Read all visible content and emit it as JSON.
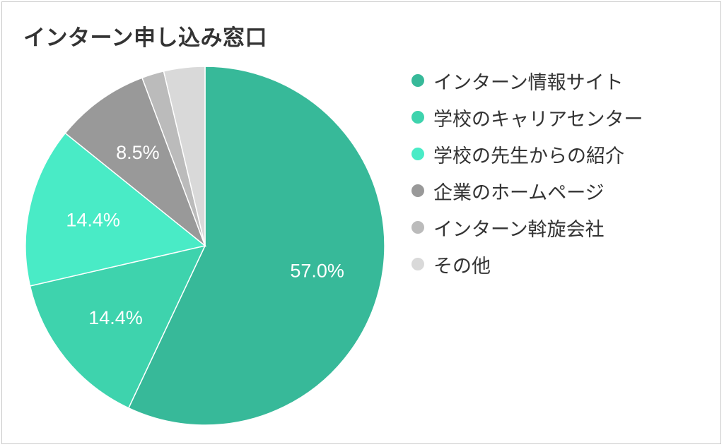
{
  "colors": {
    "background": "#ffffff",
    "title_text": "#333333",
    "label_text": "#ffffff"
  },
  "chart_data": {
    "type": "pie",
    "title": "インターン申し込み窓口",
    "slices": [
      {
        "label": "インターン情報サイト",
        "value": 57.0,
        "value_label": "57.0%",
        "color": "#37b999"
      },
      {
        "label": "学校のキャリアセンター",
        "value": 14.4,
        "value_label": "14.4%",
        "color": "#3ed3ad"
      },
      {
        "label": "学校の先生からの紹介",
        "value": 14.4,
        "value_label": "14.4%",
        "color": "#49ebc6"
      },
      {
        "label": "企業のホームページ",
        "value": 8.5,
        "value_label": "8.5%",
        "color": "#999999"
      },
      {
        "label": "インターン斡旋会社",
        "value": 2.0,
        "value_label": "",
        "color": "#bbbbbb"
      },
      {
        "label": "その他",
        "value": 3.7,
        "value_label": "",
        "color": "#d9d9d9"
      }
    ],
    "legend_position": "right"
  }
}
